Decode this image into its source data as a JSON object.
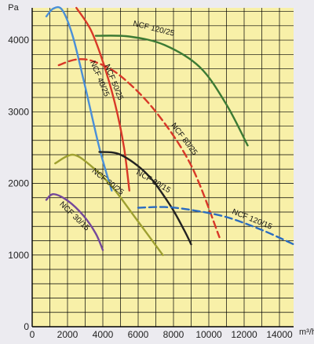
{
  "chart_data": {
    "type": "line",
    "title": "",
    "xlabel": "m³/h",
    "ylabel": "Pa",
    "xlim": [
      0,
      14800
    ],
    "ylim": [
      0,
      4450
    ],
    "grid": true,
    "colors": {
      "plot_background": "#f8f0a8",
      "grid": "#000000",
      "page_background": "#ecebf0"
    },
    "x_ticks": [
      {
        "value": 0,
        "label": "0"
      },
      {
        "value": 2000,
        "label": "2000"
      },
      {
        "value": 4000,
        "label": "4000"
      },
      {
        "value": 6000,
        "label": "6000"
      },
      {
        "value": 8000,
        "label": "8000"
      },
      {
        "value": 10000,
        "label": "10000"
      },
      {
        "value": 12000,
        "label": "12000"
      },
      {
        "value": 14000,
        "label": "14000"
      }
    ],
    "y_ticks": [
      {
        "value": 0,
        "label": "0"
      },
      {
        "value": 1000,
        "label": "1000"
      },
      {
        "value": 2000,
        "label": "2000"
      },
      {
        "value": 3000,
        "label": "3000"
      },
      {
        "value": 4000,
        "label": "4000"
      }
    ],
    "series": [
      {
        "name": "NCF 40/25",
        "color": "#4a8fd8",
        "dash": false,
        "points": [
          [
            800,
            4330
          ],
          [
            1200,
            4440
          ],
          [
            1700,
            4420
          ],
          [
            2300,
            4050
          ],
          [
            3000,
            3350
          ],
          [
            3800,
            2500
          ],
          [
            4500,
            1900
          ]
        ],
        "label": {
          "x": 3700,
          "y": 3450,
          "angle": 67
        }
      },
      {
        "name": "NCF 50/25",
        "color": "#d83828",
        "dash": false,
        "points": [
          [
            2500,
            4450
          ],
          [
            3300,
            4150
          ],
          [
            4000,
            3700
          ],
          [
            4700,
            3100
          ],
          [
            5200,
            2500
          ],
          [
            5500,
            1900
          ]
        ],
        "label": {
          "x": 4500,
          "y": 3400,
          "angle": 68
        }
      },
      {
        "name": "NCF 120/25",
        "color": "#3c7a34",
        "dash": false,
        "points": [
          [
            3600,
            4060
          ],
          [
            5500,
            4050
          ],
          [
            7500,
            3930
          ],
          [
            9500,
            3620
          ],
          [
            11000,
            3100
          ],
          [
            12200,
            2530
          ]
        ],
        "label": {
          "x": 6850,
          "y": 4130,
          "angle": 14
        }
      },
      {
        "name": "NCF 80/25",
        "color": "#d83828",
        "dash": true,
        "points": [
          [
            1500,
            3650
          ],
          [
            2500,
            3730
          ],
          [
            3500,
            3700
          ],
          [
            5000,
            3500
          ],
          [
            7000,
            3000
          ],
          [
            9000,
            2250
          ],
          [
            10600,
            1250
          ]
        ],
        "label": {
          "x": 8500,
          "y": 2600,
          "angle": 53
        }
      },
      {
        "name": "NCF 80/15",
        "color": "#222222",
        "dash": false,
        "points": [
          [
            3800,
            2440
          ],
          [
            5000,
            2400
          ],
          [
            6500,
            2130
          ],
          [
            7800,
            1700
          ],
          [
            8600,
            1350
          ],
          [
            9000,
            1150
          ]
        ],
        "label": {
          "x": 6800,
          "y": 2000,
          "angle": 30
        }
      },
      {
        "name": "NCF 30/25",
        "color": "#9ea030",
        "dash": false,
        "points": [
          [
            1300,
            2280
          ],
          [
            2300,
            2400
          ],
          [
            3300,
            2250
          ],
          [
            4500,
            1960
          ],
          [
            5900,
            1500
          ],
          [
            7400,
            1000
          ]
        ],
        "label": {
          "x": 4200,
          "y": 2000,
          "angle": 38
        }
      },
      {
        "name": "NCF 30/15",
        "color": "#74489a",
        "dash": false,
        "points": [
          [
            800,
            1770
          ],
          [
            1200,
            1850
          ],
          [
            2000,
            1760
          ],
          [
            2900,
            1550
          ],
          [
            3600,
            1300
          ],
          [
            4000,
            1070
          ]
        ],
        "label": {
          "x": 2300,
          "y": 1520,
          "angle": 44
        }
      },
      {
        "name": "NCF 120/15",
        "color": "#2b6cc0",
        "dash": true,
        "points": [
          [
            6000,
            1660
          ],
          [
            7500,
            1670
          ],
          [
            9000,
            1630
          ],
          [
            11000,
            1530
          ],
          [
            13000,
            1350
          ],
          [
            14800,
            1150
          ]
        ],
        "label": {
          "x": 12400,
          "y": 1470,
          "angle": 22
        }
      }
    ]
  }
}
